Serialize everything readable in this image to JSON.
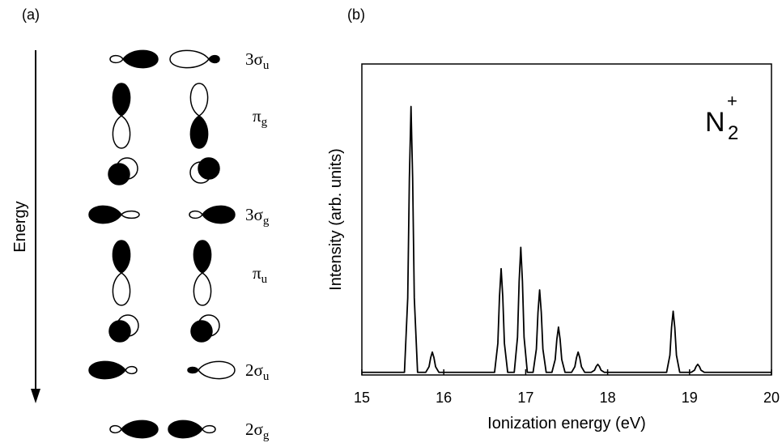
{
  "diagram": {
    "panel_label": "(a)",
    "axis_label": "Energy",
    "orbitals": [
      {
        "name": "3σ",
        "subscript": "u"
      },
      {
        "name": "π",
        "subscript": "g"
      },
      {
        "name": "3σ",
        "subscript": "g"
      },
      {
        "name": "π",
        "subscript": "u"
      },
      {
        "name": "2σ",
        "subscript": "u"
      },
      {
        "name": "2σ",
        "subscript": "g"
      }
    ]
  },
  "chart_data": {
    "type": "line",
    "panel_label": "(b)",
    "annotation": {
      "text": "N",
      "superscript": "+",
      "subscript": "2"
    },
    "x_label": "Ionization energy (eV)",
    "y_label": "Intensity (arb. units)",
    "color": "#000000",
    "x": [
      15,
      15.52,
      15.56,
      15.58,
      15.6,
      15.62,
      15.64,
      15.68,
      15.78,
      15.82,
      15.84,
      15.86,
      15.88,
      15.9,
      15.94,
      16.62,
      16.66,
      16.68,
      16.7,
      16.72,
      16.74,
      16.78,
      16.86,
      16.9,
      16.92,
      16.94,
      16.96,
      16.98,
      17.02,
      17.09,
      17.13,
      17.15,
      17.17,
      17.19,
      17.21,
      17.25,
      17.32,
      17.36,
      17.38,
      17.4,
      17.42,
      17.44,
      17.48,
      17.56,
      17.6,
      17.62,
      17.64,
      17.66,
      17.68,
      17.72,
      17.8,
      17.84,
      17.86,
      17.88,
      17.9,
      17.92,
      17.96,
      18.72,
      18.76,
      18.78,
      18.8,
      18.82,
      18.84,
      18.88,
      19.02,
      19.06,
      19.08,
      19.1,
      19.12,
      19.14,
      19.18,
      20
    ],
    "values": [
      0,
      0,
      0.28,
      0.73,
      1.0,
      0.73,
      0.28,
      0,
      0,
      0.021,
      0.055,
      0.076,
      0.055,
      0.021,
      0,
      0,
      0.109,
      0.285,
      0.39,
      0.285,
      0.109,
      0,
      0,
      0.132,
      0.343,
      0.47,
      0.343,
      0.132,
      0,
      0,
      0.087,
      0.226,
      0.31,
      0.226,
      0.087,
      0,
      0,
      0.048,
      0.124,
      0.17,
      0.124,
      0.048,
      0,
      0,
      0.021,
      0.055,
      0.076,
      0.055,
      0.021,
      0,
      0,
      0.008,
      0.022,
      0.03,
      0.022,
      0.008,
      0,
      0,
      0.064,
      0.168,
      0.23,
      0.168,
      0.064,
      0,
      0,
      0.008,
      0.022,
      0.03,
      0.022,
      0.008,
      0,
      0
    ],
    "xlim": [
      15,
      20
    ],
    "xticks": [
      15,
      16,
      17,
      18,
      19,
      20
    ],
    "ylim": [
      -0.01,
      1.16
    ]
  }
}
